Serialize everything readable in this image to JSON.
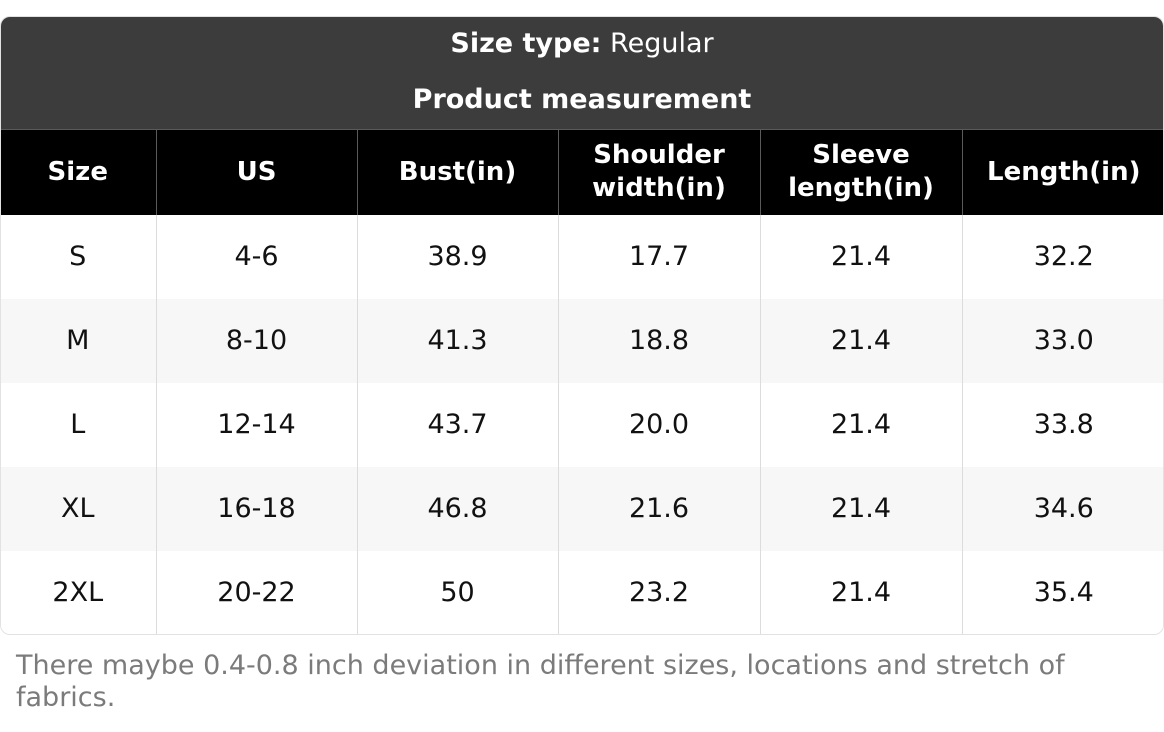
{
  "caption": {
    "size_type_label": "Size type:",
    "size_type_value": "Regular",
    "title": "Product measurement"
  },
  "table": {
    "headers": [
      [
        "Size"
      ],
      [
        "US"
      ],
      [
        "Bust(in)"
      ],
      [
        "Shoulder",
        "width(in)"
      ],
      [
        "Sleeve",
        "length(in)"
      ],
      [
        "Length(in)"
      ]
    ],
    "rows": [
      [
        "S",
        "4-6",
        "38.9",
        "17.7",
        "21.4",
        "32.2"
      ],
      [
        "M",
        "8-10",
        "41.3",
        "18.8",
        "21.4",
        "33.0"
      ],
      [
        "L",
        "12-14",
        "43.7",
        "20.0",
        "21.4",
        "33.8"
      ],
      [
        "XL",
        "16-18",
        "46.8",
        "21.6",
        "21.4",
        "34.6"
      ],
      [
        "2XL",
        "20-22",
        "50",
        "23.2",
        "21.4",
        "35.4"
      ]
    ]
  },
  "note": "There maybe 0.4-0.8 inch deviation in different sizes, locations and stretch of fabrics.",
  "colors": {
    "caption_bg": "#3c3c3c",
    "header_bg": "#000000",
    "stripe_bg": "#f7f7f7",
    "note_text": "#7b7b7b"
  }
}
